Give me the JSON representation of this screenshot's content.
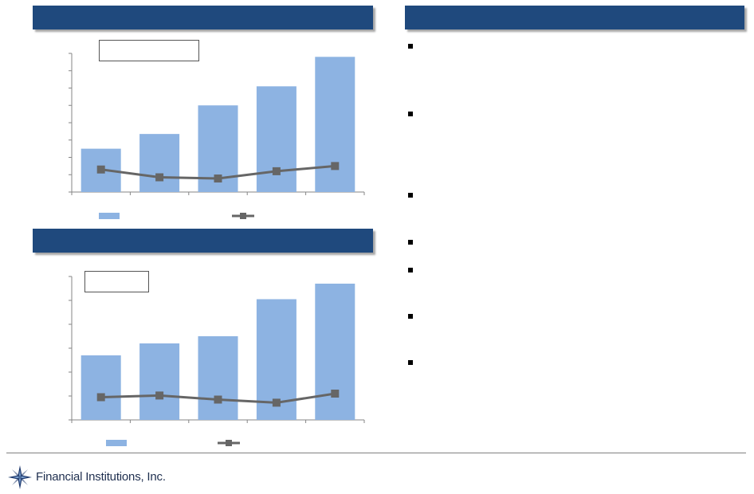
{
  "footer": {
    "company_name": "Financial Institutions, Inc."
  },
  "colors": {
    "header_bar": "#1f497d",
    "bar_fill": "#8db3e2",
    "line_series": "#666666"
  },
  "chart_data": [
    {
      "type": "bar",
      "categories": [
        "",
        "",
        "",
        "",
        ""
      ],
      "series": [
        {
          "kind": "bar",
          "values": [
            2.5,
            3.35,
            5.0,
            6.1,
            7.8
          ]
        },
        {
          "kind": "line",
          "values": [
            1.3,
            0.85,
            0.78,
            1.2,
            1.5
          ]
        }
      ],
      "ylim": [
        0,
        8
      ],
      "grid": false,
      "legend": "bottom"
    },
    {
      "type": "bar",
      "categories": [
        "",
        "",
        "",
        "",
        ""
      ],
      "series": [
        {
          "kind": "bar",
          "values": [
            2.7,
            3.2,
            3.5,
            5.05,
            5.7
          ]
        },
        {
          "kind": "line",
          "values": [
            0.95,
            1.02,
            0.85,
            0.72,
            1.1
          ]
        }
      ],
      "ylim": [
        0,
        6
      ],
      "grid": false,
      "legend": "bottom"
    }
  ]
}
